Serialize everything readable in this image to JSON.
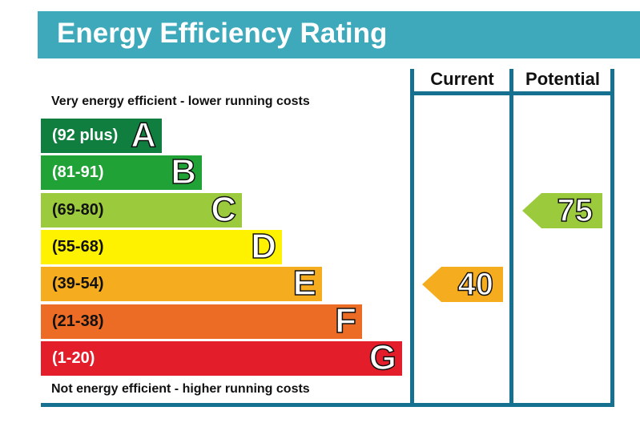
{
  "title": "Energy Efficiency Rating",
  "columns": {
    "current": "Current",
    "potential": "Potential"
  },
  "top_caption": "Very energy efficient - lower running costs",
  "bottom_caption": "Not energy efficient - higher running costs",
  "chart_data": {
    "type": "bar",
    "title": "Energy Efficiency Rating",
    "bands": [
      {
        "letter": "A",
        "range": "(92 plus)",
        "color": "#107e3e"
      },
      {
        "letter": "B",
        "range": "(81-91)",
        "color": "#21a237"
      },
      {
        "letter": "C",
        "range": "(69-80)",
        "color": "#9bcb3c"
      },
      {
        "letter": "D",
        "range": "(55-68)",
        "color": "#fff200"
      },
      {
        "letter": "E",
        "range": "(39-54)",
        "color": "#f5ac1f"
      },
      {
        "letter": "F",
        "range": "(21-38)",
        "color": "#ec6b25"
      },
      {
        "letter": "G",
        "range": "(1-20)",
        "color": "#e31d2a"
      }
    ],
    "current": {
      "value": 40,
      "band": "E",
      "color": "#f5ac1f"
    },
    "potential": {
      "value": 75,
      "band": "C",
      "color": "#9bcb3c"
    }
  },
  "colors": {
    "header": "#3ea9bb",
    "frame": "#16708f"
  }
}
